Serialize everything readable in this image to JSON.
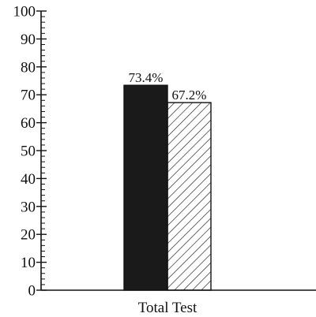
{
  "chart_data": {
    "type": "bar",
    "categories": [
      "Total Test"
    ],
    "series": [
      {
        "values": [
          73.4
        ],
        "fill": "solid",
        "color": "#1a1a1a"
      },
      {
        "values": [
          67.2
        ],
        "fill": "hatched",
        "color": "#1a1a1a"
      }
    ],
    "data_labels": [
      "73.4%",
      "67.2%"
    ],
    "y_tick_labels": [
      "0",
      "10",
      "20",
      "30",
      "40",
      "50",
      "60",
      "70",
      "80",
      "90",
      "100"
    ],
    "ylim": [
      0,
      100
    ],
    "title": "",
    "xlabel": "",
    "ylabel": "",
    "grid": false,
    "legend": "none"
  }
}
